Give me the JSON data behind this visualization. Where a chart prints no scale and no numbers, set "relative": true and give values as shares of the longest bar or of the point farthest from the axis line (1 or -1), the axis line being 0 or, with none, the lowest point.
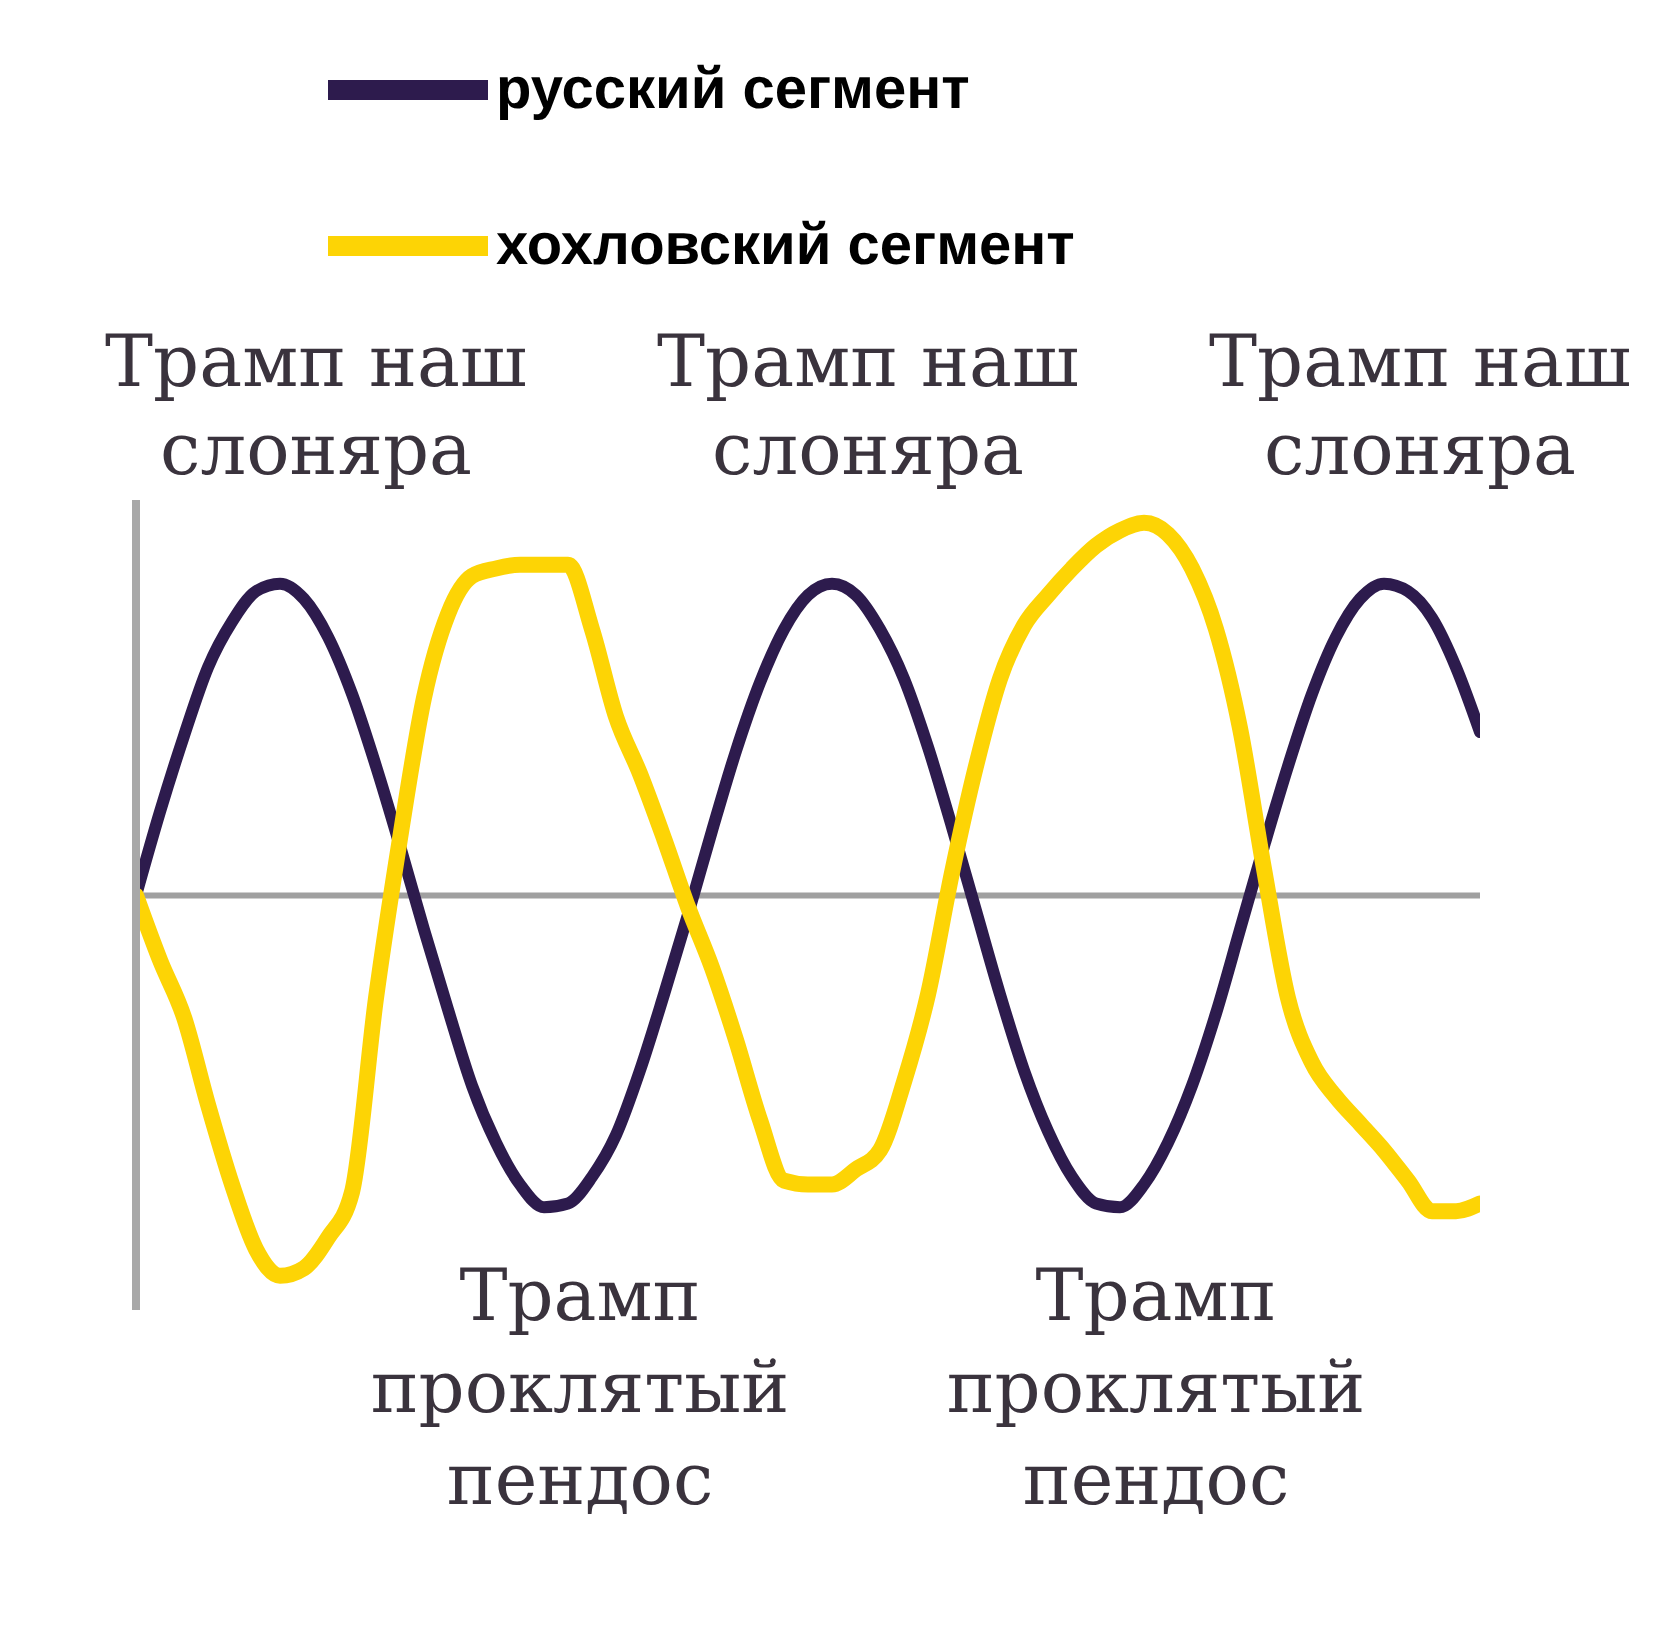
{
  "chart_data": {
    "type": "line",
    "relative": true,
    "legend": "top left",
    "categories": [
      null,
      null,
      null,
      null,
      null,
      null,
      null,
      null,
      null,
      null,
      null,
      null,
      null,
      null,
      null,
      null,
      null,
      null,
      null,
      null,
      null,
      null,
      null,
      null,
      null,
      null,
      null,
      null,
      null,
      null,
      null,
      null,
      null,
      null,
      null,
      null,
      null,
      null,
      null,
      null,
      null,
      null,
      null,
      null,
      null,
      null,
      null,
      null,
      null,
      null,
      null,
      null,
      null,
      null,
      null,
      null,
      null
    ],
    "series": [
      {
        "name": "русский сегмент",
        "color": "#2d1b4d",
        "values": [
          0,
          0.22,
          0.42,
          0.6,
          0.72,
          0.8,
          0.82,
          0.78,
          0.68,
          0.53,
          0.34,
          0.13,
          -0.09,
          -0.3,
          -0.5,
          -0.65,
          -0.76,
          -0.82,
          -0.81,
          -0.74,
          -0.63,
          -0.46,
          -0.26,
          -0.05,
          0.17,
          0.38,
          0.56,
          0.7,
          0.79,
          0.82,
          0.79,
          0.7,
          0.57,
          0.39,
          0.18,
          -0.04,
          -0.26,
          -0.46,
          -0.62,
          -0.74,
          -0.81,
          -0.82,
          -0.76,
          -0.65,
          -0.5,
          -0.31,
          -0.09,
          0.13,
          0.34,
          0.53,
          0.68,
          0.78,
          0.82,
          0.8,
          0.73,
          0.6,
          0.43
        ]
      },
      {
        "name": "хохловский сегмент",
        "color": "#fdd405",
        "values": [
          0,
          -0.17,
          -0.32,
          -0.55,
          -0.76,
          -0.93,
          -1,
          -0.98,
          -0.9,
          -0.78,
          -0.27,
          0.15,
          0.52,
          0.74,
          0.84,
          0.86,
          0.87,
          0.87,
          0.87,
          0.7,
          0.47,
          0.32,
          0.15,
          -0.03,
          -0.19,
          -0.38,
          -0.59,
          -0.75,
          -0.76,
          -0.76,
          -0.72,
          -0.67,
          -0.49,
          -0.26,
          0.06,
          0.34,
          0.57,
          0.71,
          0.79,
          0.86,
          0.92,
          0.96,
          0.98,
          0.95,
          0.86,
          0.7,
          0.44,
          0.07,
          -0.27,
          -0.44,
          -0.53,
          -0.6,
          -0.67,
          -0.75,
          -0.83,
          -0.83,
          -0.81
        ]
      }
    ],
    "annotations": [
      "Трамп наш слоняра",
      "Трамп наш слоняра",
      "Трамп наш слоняра",
      "Трамп проклятый пендос",
      "Трамп проклятый пендос"
    ]
  }
}
